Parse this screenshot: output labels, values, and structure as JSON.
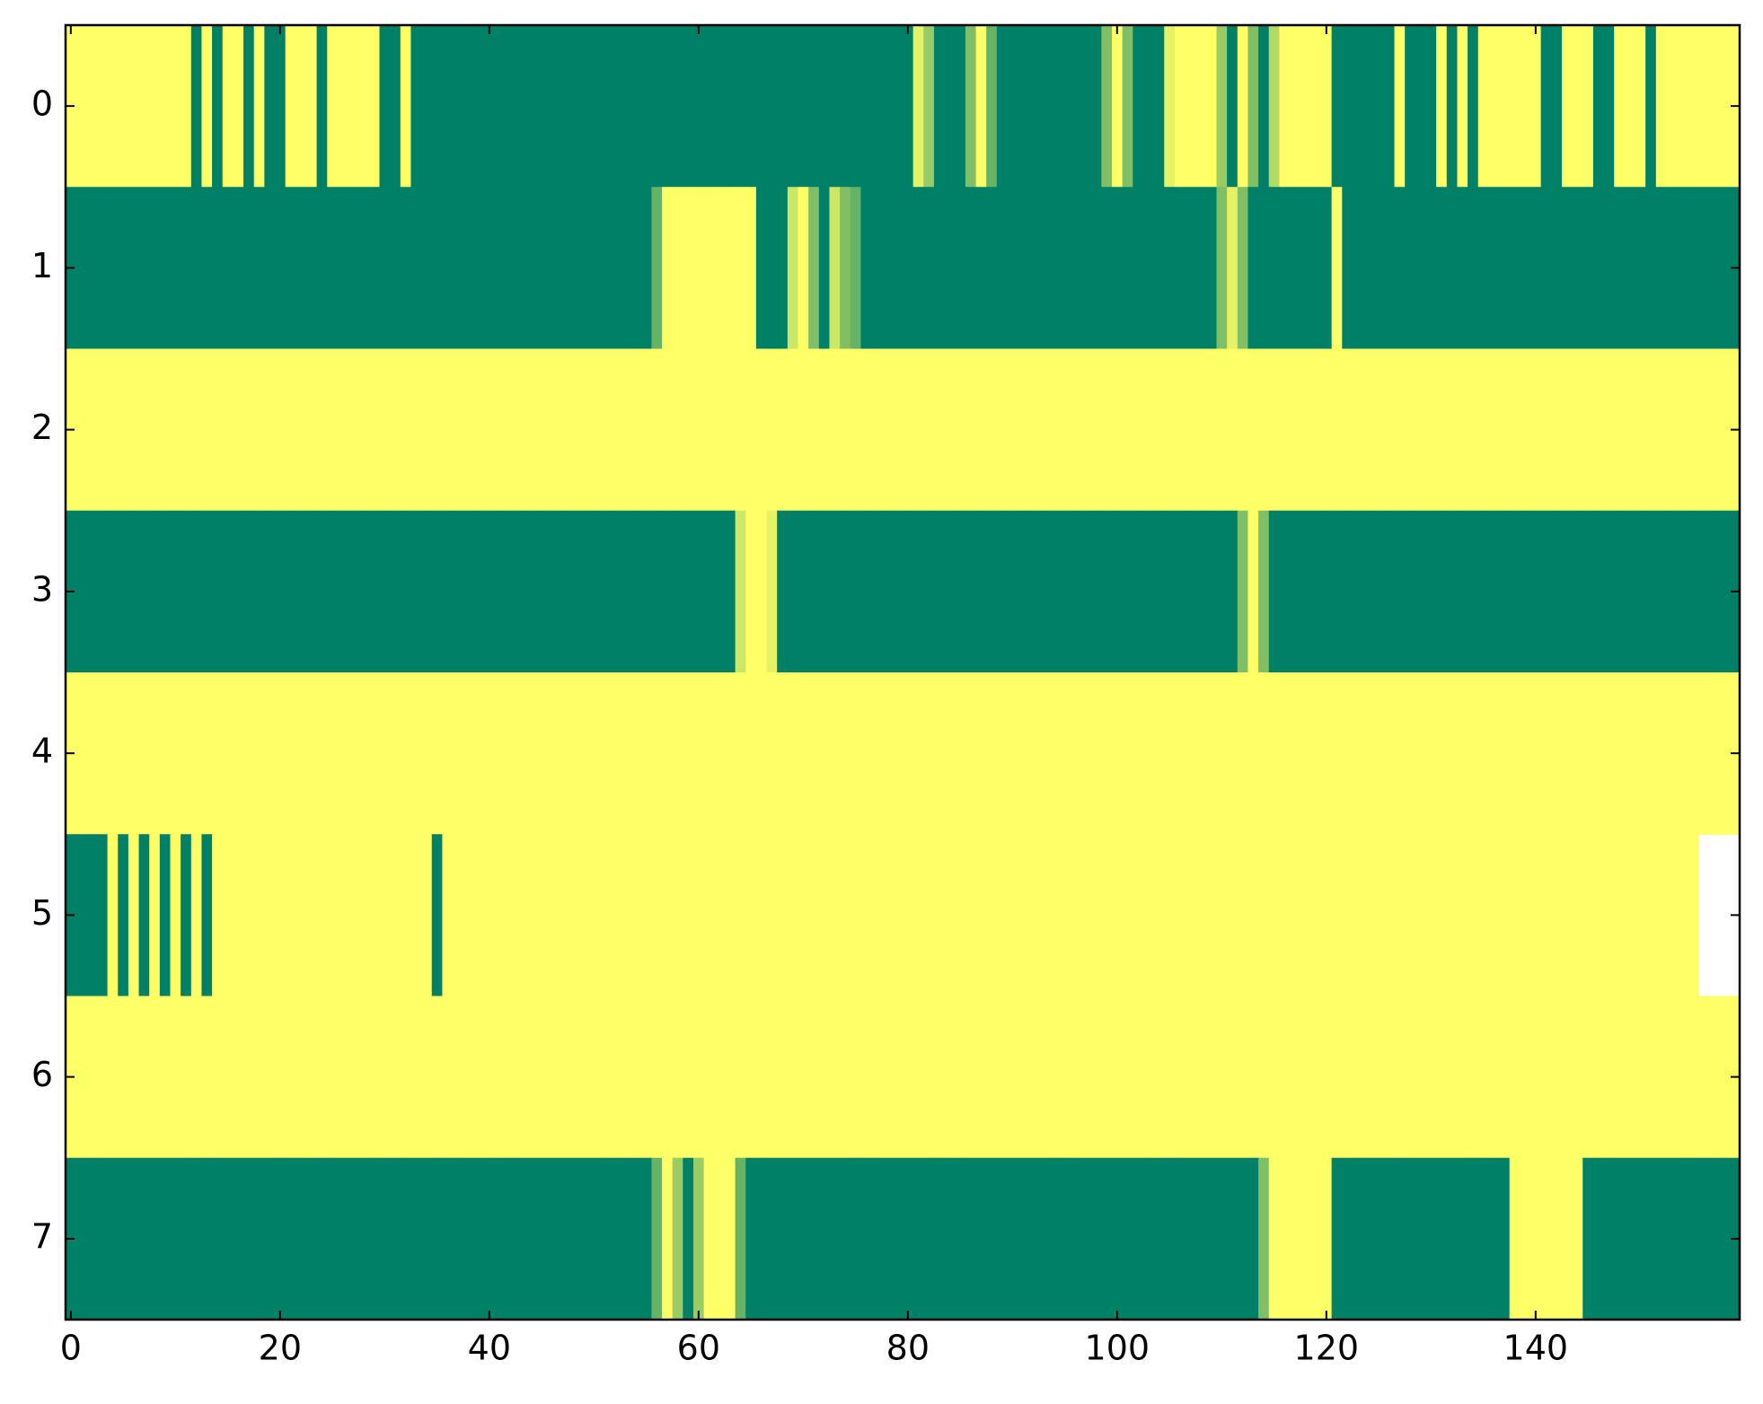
{
  "chart_data": {
    "type": "heatmap",
    "colormap": "summer",
    "xlim": [
      -0.5,
      159.5
    ],
    "ylim": [
      7.5,
      -0.5
    ],
    "xticks": [
      0,
      20,
      40,
      60,
      80,
      100,
      120,
      140
    ],
    "yticks": [
      0,
      1,
      2,
      3,
      4,
      5,
      6,
      7
    ],
    "z": [
      [
        1,
        1,
        1,
        1,
        1,
        1,
        1,
        1,
        1,
        1,
        1,
        1,
        0,
        1,
        0,
        1,
        1,
        0,
        1,
        0,
        0,
        1,
        1,
        1,
        0,
        1,
        1,
        1,
        1,
        1,
        0,
        0,
        1,
        0,
        0,
        0,
        0,
        0,
        0,
        0,
        0,
        0,
        0,
        0,
        0,
        0,
        0,
        0,
        0,
        0,
        0,
        0,
        0,
        0,
        0,
        0,
        0,
        0,
        0,
        0,
        0,
        0,
        0,
        0,
        0,
        0,
        0,
        0,
        0,
        0,
        0,
        0,
        0,
        0,
        0,
        0,
        0,
        0,
        0,
        0,
        0,
        0.9,
        0.6,
        0,
        0,
        0,
        0.5,
        1,
        0.4,
        0,
        0,
        0,
        0,
        0,
        0,
        0,
        0,
        0,
        0,
        0.5,
        1,
        0.5,
        0,
        0,
        0,
        0.9,
        1,
        1,
        1,
        1,
        0.6,
        0,
        1,
        0.5,
        0,
        0.7,
        1,
        1,
        1,
        1,
        1,
        0,
        0,
        0,
        0,
        0,
        0,
        1,
        0,
        0,
        0,
        1,
        0,
        1,
        0,
        1,
        1,
        1,
        1,
        1,
        1,
        0,
        0,
        1,
        1,
        1,
        0,
        0,
        1,
        1,
        1,
        0,
        1,
        1,
        1,
        1,
        1,
        1,
        1,
        1
      ],
      [
        0,
        0,
        0,
        0,
        0,
        0,
        0,
        0,
        0,
        0,
        0,
        0,
        0,
        0,
        0,
        0,
        0,
        0,
        0,
        0,
        0,
        0,
        0,
        0,
        0,
        0,
        0,
        0,
        0,
        0,
        0,
        0,
        0,
        0,
        0,
        0,
        0,
        0,
        0,
        0,
        0,
        0,
        0,
        0,
        0,
        0,
        0,
        0,
        0,
        0,
        0,
        0,
        0,
        0,
        0,
        0,
        0.4,
        1,
        1,
        1,
        1,
        1,
        1,
        1,
        1,
        1,
        0,
        0,
        0,
        0.8,
        1,
        0.5,
        0,
        0.8,
        0.5,
        0.4,
        0,
        0,
        0,
        0,
        0,
        0,
        0,
        0,
        0,
        0,
        0,
        0,
        0,
        0,
        0,
        0,
        0,
        0,
        0,
        0,
        0,
        0,
        0,
        0,
        0,
        0,
        0,
        0,
        0,
        0,
        0,
        0,
        0,
        0,
        0.5,
        0.9,
        0.5,
        0,
        0,
        0,
        0,
        0,
        0,
        0,
        0,
        1,
        0,
        0,
        0,
        0,
        0,
        0,
        0,
        0,
        0,
        0,
        0,
        0,
        0,
        0,
        0,
        0,
        0,
        0,
        0,
        0,
        0,
        0,
        0,
        0,
        0,
        0,
        0,
        0,
        0,
        0,
        0,
        0,
        0,
        0,
        0,
        0,
        0,
        0
      ],
      [
        1,
        1,
        1,
        1,
        1,
        1,
        1,
        1,
        1,
        1,
        1,
        1,
        1,
        1,
        1,
        1,
        1,
        1,
        1,
        1,
        1,
        1,
        1,
        1,
        1,
        1,
        1,
        1,
        1,
        1,
        1,
        1,
        1,
        1,
        1,
        1,
        1,
        1,
        1,
        1,
        1,
        1,
        1,
        1,
        1,
        1,
        1,
        1,
        1,
        1,
        1,
        1,
        1,
        1,
        1,
        1,
        1,
        1,
        1,
        1,
        1,
        1,
        1,
        1,
        1,
        1,
        1,
        1,
        1,
        1,
        1,
        1,
        1,
        1,
        1,
        1,
        1,
        1,
        1,
        1,
        1,
        1,
        1,
        1,
        1,
        1,
        1,
        1,
        1,
        1,
        1,
        1,
        1,
        1,
        1,
        1,
        1,
        1,
        1,
        1,
        1,
        1,
        1,
        1,
        1,
        1,
        1,
        1,
        1,
        1,
        1,
        1,
        1,
        1,
        1,
        1,
        1,
        1,
        1,
        1,
        1,
        1,
        1,
        1,
        1,
        1,
        1,
        1,
        1,
        1,
        1,
        1,
        1,
        1,
        1,
        1,
        1,
        1,
        1,
        1,
        1,
        1,
        1,
        1,
        1,
        1,
        1,
        1,
        1,
        1,
        1,
        1,
        1,
        1,
        1,
        1,
        1,
        1,
        1,
        1
      ],
      [
        0,
        0,
        0,
        0,
        0,
        0,
        0,
        0,
        0,
        0,
        0,
        0,
        0,
        0,
        0,
        0,
        0,
        0,
        0,
        0,
        0,
        0,
        0,
        0,
        0,
        0,
        0,
        0,
        0,
        0,
        0,
        0,
        0,
        0,
        0,
        0,
        0,
        0,
        0,
        0,
        0,
        0,
        0,
        0,
        0,
        0,
        0,
        0,
        0,
        0,
        0,
        0,
        0,
        0,
        0,
        0,
        0,
        0,
        0,
        0,
        0,
        0,
        0,
        0,
        0.8,
        1,
        1,
        0.9,
        0,
        0,
        0,
        0,
        0,
        0,
        0,
        0,
        0,
        0,
        0,
        0,
        0,
        0,
        0,
        0,
        0,
        0,
        0,
        0,
        0,
        0,
        0,
        0,
        0,
        0,
        0,
        0,
        0,
        0,
        0,
        0,
        0,
        0,
        0,
        0,
        0,
        0,
        0,
        0,
        0,
        0,
        0,
        0,
        0.5,
        1,
        0.5,
        0,
        0,
        0,
        0,
        0,
        0,
        0,
        0,
        0,
        0,
        0,
        0,
        0,
        0,
        0,
        0,
        0,
        0,
        0,
        0,
        0,
        0,
        0,
        0,
        0,
        0,
        0,
        0,
        0,
        0,
        0,
        0,
        0,
        0,
        0,
        0,
        0,
        0,
        0,
        0,
        0,
        0,
        0,
        0,
        0
      ],
      [
        1,
        1,
        1,
        1,
        1,
        1,
        1,
        1,
        1,
        1,
        1,
        1,
        1,
        1,
        1,
        1,
        1,
        1,
        1,
        1,
        1,
        1,
        1,
        1,
        1,
        1,
        1,
        1,
        1,
        1,
        1,
        1,
        1,
        1,
        1,
        1,
        1,
        1,
        1,
        1,
        1,
        1,
        1,
        1,
        1,
        1,
        1,
        1,
        1,
        1,
        1,
        1,
        1,
        1,
        1,
        1,
        1,
        1,
        1,
        1,
        1,
        1,
        1,
        1,
        1,
        1,
        1,
        1,
        1,
        1,
        1,
        1,
        1,
        1,
        1,
        1,
        1,
        1,
        1,
        1,
        1,
        1,
        1,
        1,
        1,
        1,
        1,
        1,
        1,
        1,
        1,
        1,
        1,
        1,
        1,
        1,
        1,
        1,
        1,
        1,
        1,
        1,
        1,
        1,
        1,
        1,
        1,
        1,
        1,
        1,
        1,
        1,
        1,
        1,
        1,
        1,
        1,
        1,
        1,
        1,
        1,
        1,
        1,
        1,
        1,
        1,
        1,
        1,
        1,
        1,
        1,
        1,
        1,
        1,
        1,
        1,
        1,
        1,
        1,
        1,
        1,
        1,
        1,
        1,
        1,
        1,
        1,
        1,
        1,
        1,
        1,
        1,
        1,
        1,
        1,
        1,
        1,
        1,
        1,
        1
      ],
      [
        0,
        0,
        0,
        0,
        1,
        0,
        1,
        0,
        1,
        0,
        1,
        0,
        1,
        0,
        1,
        1,
        1,
        1,
        1,
        1,
        1,
        1,
        1,
        1,
        1,
        1,
        1,
        1,
        1,
        1,
        1,
        1,
        1,
        1,
        1,
        0,
        1,
        1,
        1,
        1,
        1,
        1,
        1,
        1,
        1,
        1,
        1,
        1,
        1,
        1,
        1,
        1,
        1,
        1,
        1,
        1,
        1,
        1,
        1,
        1,
        1,
        1,
        1,
        1,
        1,
        1,
        1,
        1,
        1,
        1,
        1,
        1,
        1,
        1,
        1,
        1,
        1,
        1,
        1,
        1,
        1,
        1,
        1,
        1,
        1,
        1,
        1,
        1,
        1,
        1,
        1,
        1,
        1,
        1,
        1,
        1,
        1,
        1,
        1,
        1,
        1,
        1,
        1,
        1,
        1,
        1,
        1,
        1,
        1,
        1,
        1,
        1,
        1,
        1,
        1,
        1,
        1,
        1,
        1,
        1,
        1,
        1,
        1,
        1,
        1,
        1,
        1,
        1,
        1,
        1,
        1,
        1,
        1,
        1,
        1,
        1,
        1,
        1,
        1,
        1,
        1,
        1,
        1,
        1,
        1,
        1,
        1,
        1,
        1,
        1,
        1,
        1,
        1,
        1,
        1,
        1
      ],
      [
        1,
        1,
        1,
        1,
        1,
        1,
        1,
        1,
        1,
        1,
        1,
        1,
        1,
        1,
        1,
        1,
        1,
        1,
        1,
        1,
        1,
        1,
        1,
        1,
        1,
        1,
        1,
        1,
        1,
        1,
        1,
        1,
        1,
        1,
        1,
        1,
        1,
        1,
        1,
        1,
        1,
        1,
        1,
        1,
        1,
        1,
        1,
        1,
        1,
        1,
        1,
        1,
        1,
        1,
        1,
        1,
        1,
        1,
        1,
        1,
        1,
        1,
        1,
        1,
        1,
        1,
        1,
        1,
        1,
        1,
        1,
        1,
        1,
        1,
        1,
        1,
        1,
        1,
        1,
        1,
        1,
        1,
        1,
        1,
        1,
        1,
        1,
        1,
        1,
        1,
        1,
        1,
        1,
        1,
        1,
        1,
        1,
        1,
        1,
        1,
        1,
        1,
        1,
        1,
        1,
        1,
        1,
        1,
        1,
        1,
        1,
        1,
        1,
        1,
        1,
        1,
        1,
        1,
        1,
        1,
        1,
        1,
        1,
        1,
        1,
        1,
        1,
        1,
        1,
        1,
        1,
        1,
        1,
        1,
        1,
        1,
        1,
        1,
        1,
        1,
        1,
        1,
        1,
        1,
        1,
        1,
        1,
        1,
        1,
        1,
        1,
        1,
        1,
        1,
        1,
        1,
        1,
        1,
        1,
        1
      ],
      [
        0,
        0,
        0,
        0,
        0,
        0,
        0,
        0,
        0,
        0,
        0,
        0,
        0,
        0,
        0,
        0,
        0,
        0,
        0,
        0,
        0,
        0,
        0,
        0,
        0,
        0,
        0,
        0,
        0,
        0,
        0,
        0,
        0,
        0,
        0,
        0,
        0,
        0,
        0,
        0,
        0,
        0,
        0,
        0,
        0,
        0,
        0,
        0,
        0,
        0,
        0,
        0,
        0,
        0,
        0,
        0,
        0.4,
        1,
        0.6,
        0,
        0.6,
        1,
        1,
        1,
        0.4,
        0,
        0,
        0,
        0,
        0,
        0,
        0,
        0,
        0,
        0,
        0,
        0,
        0,
        0,
        0,
        0,
        0,
        0,
        0,
        0,
        0,
        0,
        0,
        0,
        0,
        0,
        0,
        0,
        0,
        0,
        0,
        0,
        0,
        0,
        0,
        0,
        0,
        0,
        0,
        0,
        0,
        0,
        0,
        0,
        0,
        0,
        0,
        0,
        0,
        0.5,
        1,
        1,
        1,
        1,
        1,
        1,
        0,
        0,
        0,
        0,
        0,
        0,
        0,
        0,
        0,
        0,
        0,
        0,
        0,
        0,
        0,
        0,
        0,
        1,
        1,
        1,
        1,
        1,
        1,
        1,
        0,
        0,
        0,
        0,
        0,
        0,
        0,
        0,
        0,
        0,
        0,
        0,
        0,
        0,
        0
      ]
    ]
  }
}
